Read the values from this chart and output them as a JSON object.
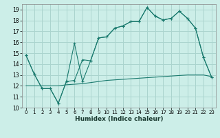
{
  "xlabel": "Humidex (Indice chaleur)",
  "bg_color": "#cceee8",
  "grid_color": "#aad4ce",
  "line_color": "#1a7a6e",
  "xlim": [
    -0.5,
    23.5
  ],
  "ylim": [
    10,
    19.5
  ],
  "yticks": [
    10,
    11,
    12,
    13,
    14,
    15,
    16,
    17,
    18,
    19
  ],
  "xticks": [
    0,
    1,
    2,
    3,
    4,
    5,
    6,
    7,
    8,
    9,
    10,
    11,
    12,
    13,
    14,
    15,
    16,
    17,
    18,
    19,
    20,
    21,
    22,
    23
  ],
  "line1_x": [
    0,
    1,
    2,
    3,
    4,
    5,
    6,
    7,
    8,
    9,
    10,
    11,
    12,
    13,
    14,
    15,
    16,
    17,
    18,
    19,
    20,
    21,
    22,
    23
  ],
  "line1_y": [
    14.8,
    13.1,
    11.75,
    11.75,
    10.4,
    12.4,
    12.5,
    14.4,
    14.3,
    16.4,
    16.5,
    17.3,
    17.5,
    17.9,
    17.9,
    19.2,
    18.4,
    18.05,
    18.2,
    18.85,
    18.2,
    17.3,
    14.6,
    12.8
  ],
  "line2_x": [
    0,
    1,
    2,
    3,
    4,
    5,
    6,
    7,
    8,
    9,
    10,
    11,
    12,
    13,
    14,
    15,
    16,
    17,
    18,
    19,
    20,
    21,
    22,
    23
  ],
  "line2_y": [
    14.8,
    13.1,
    11.75,
    11.75,
    10.4,
    12.4,
    15.9,
    12.4,
    14.3,
    16.4,
    16.5,
    17.3,
    17.5,
    17.9,
    17.9,
    19.2,
    18.4,
    18.05,
    18.2,
    18.85,
    18.2,
    17.3,
    14.6,
    12.8
  ],
  "line3_x": [
    0,
    1,
    2,
    3,
    4,
    5,
    6,
    7,
    8,
    9,
    10,
    11,
    12,
    13,
    14,
    15,
    16,
    17,
    18,
    19,
    20,
    21,
    22,
    23
  ],
  "line3_y": [
    12.0,
    12.0,
    12.0,
    12.0,
    12.0,
    12.1,
    12.15,
    12.2,
    12.3,
    12.4,
    12.5,
    12.55,
    12.6,
    12.65,
    12.7,
    12.75,
    12.8,
    12.85,
    12.9,
    12.95,
    13.0,
    13.0,
    13.0,
    12.85
  ]
}
